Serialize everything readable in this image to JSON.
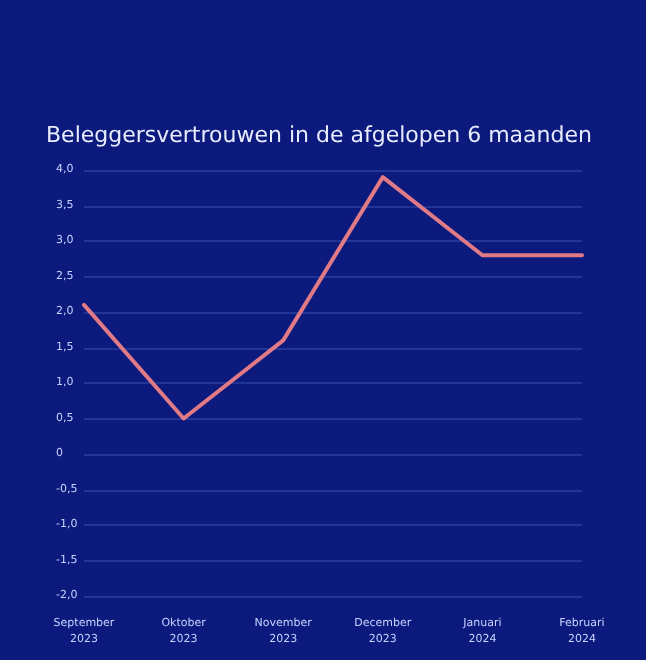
{
  "chart_data": {
    "type": "line",
    "title": "Beleggersvertrouwen in de afgelopen 6 maanden",
    "categories": [
      "September\n2023",
      "Oktober\n2023",
      "November\n2023",
      "December\n2023",
      "Januari\n2024",
      "Februari\n2024"
    ],
    "series": [
      {
        "color": "#e07a86",
        "values": [
          2.1,
          0.5,
          1.6,
          3.9,
          2.8,
          2.8
        ]
      }
    ],
    "ylim": [
      -2,
      4
    ],
    "yticks": [
      {
        "value": -2,
        "label": "-2,0"
      },
      {
        "value": -1.5,
        "label": "-1,5"
      },
      {
        "value": -1,
        "label": "-1,0"
      },
      {
        "value": -0.5,
        "label": "-0,5"
      },
      0,
      {
        "value": 0.5,
        "label": "0,5"
      },
      {
        "value": 1,
        "label": "1,0"
      },
      {
        "value": 1.5,
        "label": "1,5"
      },
      {
        "value": 2,
        "label": "2,0"
      },
      {
        "value": 2.5,
        "label": "2,5"
      },
      {
        "value": 3,
        "label": "3,0"
      },
      {
        "value": 3.5,
        "label": "3,5"
      },
      {
        "value": 4,
        "label": "4,0"
      }
    ],
    "grid": "y",
    "marker": "none",
    "line_style": "solid"
  }
}
